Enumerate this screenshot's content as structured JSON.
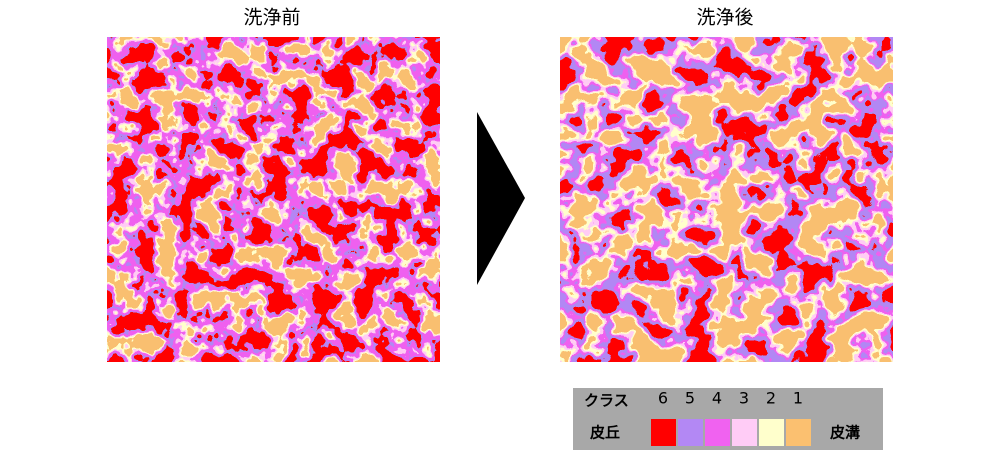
{
  "panels": [
    {
      "title": "洗浄前"
    },
    {
      "title": "洗浄後"
    }
  ],
  "legend": {
    "label": "クラス",
    "classes": [
      "6",
      "5",
      "4",
      "3",
      "2",
      "1"
    ],
    "colors": [
      "#ff0000",
      "#b388f4",
      "#f062f0",
      "#ffccf6",
      "#ffffcc",
      "#fbc070"
    ],
    "low_label": "皮丘",
    "high_label": "皮溝"
  }
}
